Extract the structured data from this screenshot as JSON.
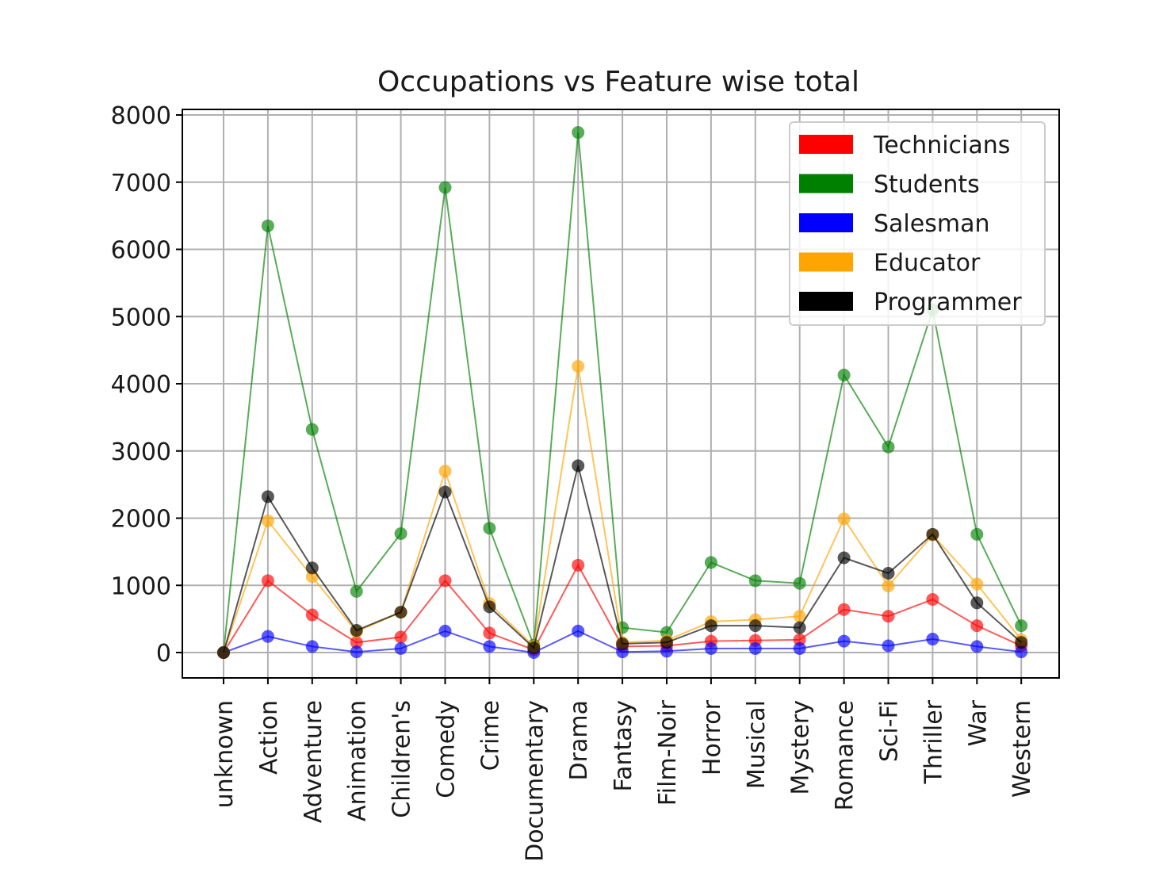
{
  "chart_data": {
    "type": "line",
    "title": "Occupations vs Feature wise total",
    "xlabel": "",
    "ylabel": "",
    "ylim": [
      -400,
      8100
    ],
    "yticks": [
      0,
      1000,
      2000,
      3000,
      4000,
      5000,
      6000,
      7000,
      8000
    ],
    "grid": true,
    "legend_position": "top-right",
    "categories": [
      "unknown",
      "Action",
      "Adventure",
      "Animation",
      "Children's",
      "Comedy",
      "Crime",
      "Documentary",
      "Drama",
      "Fantasy",
      "Film-Noir",
      "Horror",
      "Musical",
      "Mystery",
      "Romance",
      "Sci-Fi",
      "Thriller",
      "War",
      "Western"
    ],
    "series": [
      {
        "name": "Technicians",
        "color": "#ff0000",
        "values": [
          0,
          1070,
          560,
          150,
          230,
          1070,
          290,
          40,
          1300,
          90,
          100,
          170,
          180,
          190,
          640,
          540,
          790,
          400,
          100
        ]
      },
      {
        "name": "Students",
        "color": "#008000",
        "values": [
          0,
          6350,
          3320,
          910,
          1770,
          6920,
          1850,
          110,
          7740,
          370,
          300,
          1340,
          1070,
          1030,
          4130,
          3060,
          5100,
          1760,
          400
        ]
      },
      {
        "name": "Salesman",
        "color": "#0000ff",
        "values": [
          0,
          240,
          90,
          10,
          60,
          320,
          90,
          0,
          320,
          10,
          20,
          60,
          60,
          60,
          170,
          100,
          200,
          90,
          10
        ]
      },
      {
        "name": "Educator",
        "color": "#ffa500",
        "values": [
          0,
          1960,
          1130,
          310,
          600,
          2700,
          730,
          90,
          4260,
          150,
          180,
          460,
          490,
          540,
          1990,
          990,
          1750,
          1020,
          190
        ]
      },
      {
        "name": "Programmer",
        "color": "#000000",
        "values": [
          0,
          2320,
          1260,
          330,
          600,
          2390,
          680,
          70,
          2780,
          130,
          150,
          400,
          400,
          370,
          1410,
          1180,
          1760,
          740,
          150
        ]
      }
    ]
  }
}
